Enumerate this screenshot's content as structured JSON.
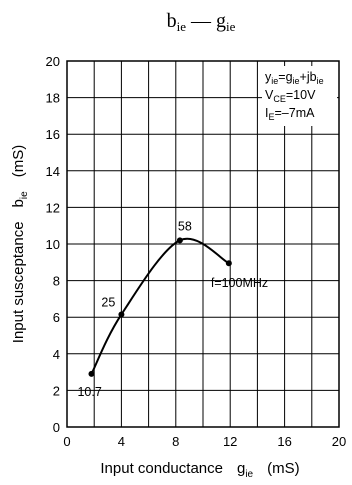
{
  "chart_data": {
    "type": "line",
    "title": {
      "main": "b",
      "main_sub": "ie",
      "dash": " — ",
      "second": "g",
      "second_sub": "ie"
    },
    "xlabel": {
      "text": "Input conductance",
      "symbol": "g",
      "symbol_sub": "ie",
      "unit": "(mS)"
    },
    "ylabel": {
      "text": "Input susceptance",
      "symbol": "b",
      "symbol_sub": "ie",
      "unit": "(mS)"
    },
    "xlim": [
      0,
      20
    ],
    "ylim": [
      0,
      20
    ],
    "x_ticks": [
      "0",
      "4",
      "8",
      "12",
      "16",
      "20"
    ],
    "y_ticks": [
      "0",
      "2",
      "4",
      "6",
      "8",
      "10",
      "12",
      "14",
      "16",
      "18",
      "20"
    ],
    "grid": true,
    "annotations": [
      {
        "parts": [
          {
            "t": "y"
          },
          {
            "t": "ie",
            "sub": true
          },
          {
            "t": "=g"
          },
          {
            "t": "ie",
            "sub": true
          },
          {
            "t": "+jb"
          },
          {
            "t": "ie",
            "sub": true
          }
        ]
      },
      {
        "parts": [
          {
            "t": "V"
          },
          {
            "t": "CE",
            "sub": true
          },
          {
            "t": "=10V"
          }
        ]
      },
      {
        "parts": [
          {
            "t": "I"
          },
          {
            "t": "E",
            "sub": true
          },
          {
            "t": "=–7mA"
          }
        ]
      }
    ],
    "series": [
      {
        "points": [
          {
            "x": 1.8,
            "y": 2.9,
            "label": "10.7"
          },
          {
            "x": 4.0,
            "y": 6.15,
            "label": "25"
          },
          {
            "x": 8.3,
            "y": 10.2,
            "label": "58"
          },
          {
            "x": 11.9,
            "y": 8.95,
            "label": "f=100MHz"
          }
        ]
      }
    ],
    "colors": {
      "curve": "#000000",
      "grid": "#000000",
      "background": "#ffffff"
    }
  }
}
